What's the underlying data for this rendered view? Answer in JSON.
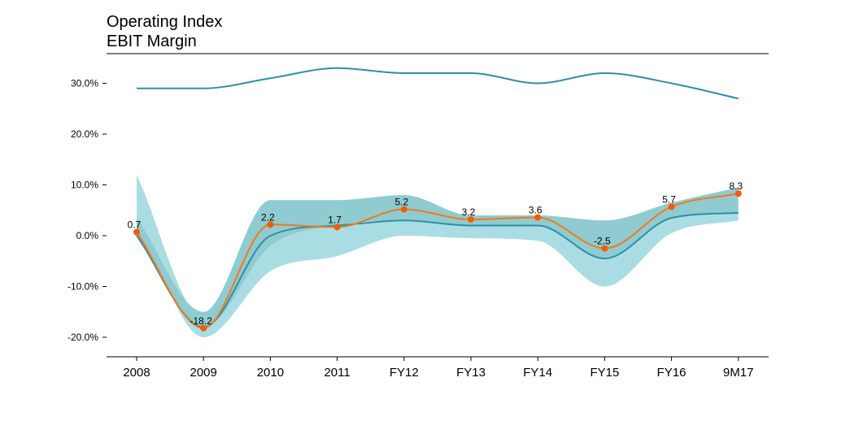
{
  "chart_data": {
    "type": "line",
    "title": "Operating Index",
    "subtitle": "EBIT Margin",
    "categories": [
      "2008",
      "2009",
      "2010",
      "2011",
      "FY12",
      "FY13",
      "FY14",
      "FY15",
      "FY16",
      "9M17"
    ],
    "ylim": [
      -24,
      36
    ],
    "yticks": [
      -20,
      -10,
      0,
      10,
      20,
      30
    ],
    "ytick_labels": [
      "-20.0%",
      "-10.0%",
      "0.0%",
      "10.0%",
      "20.0%",
      "30.0%"
    ],
    "grid": false,
    "legend": "none",
    "series": [
      {
        "role": "ebit",
        "color": "#f07a1a",
        "marker_color": "#f25c05",
        "values": [
          0.7,
          -18.2,
          2.2,
          1.7,
          5.2,
          3.2,
          3.6,
          -2.5,
          5.7,
          8.3
        ],
        "data_labels": [
          "0.7",
          "-18.2",
          "2.2",
          "1.7",
          "5.2",
          "3.2",
          "3.6",
          "-2.5",
          "5.7",
          "8.3"
        ]
      },
      {
        "role": "upper",
        "color": "#2e8fa6",
        "values": [
          29,
          29,
          31,
          33,
          32,
          32,
          30,
          32,
          30,
          27
        ]
      },
      {
        "role": "median",
        "color": "#2e8fa6",
        "values": [
          0,
          -18,
          0,
          2,
          3,
          2,
          2,
          -4.5,
          3.5,
          4.5
        ]
      },
      {
        "role": "inner_band",
        "color": "#8fcbd0",
        "low": [
          0,
          -18,
          -2,
          2,
          3,
          2,
          2,
          -4.5,
          3.5,
          4.5
        ],
        "high": [
          3.5,
          -15,
          7,
          7,
          8,
          4,
          4,
          3,
          6.5,
          9.5
        ]
      },
      {
        "role": "outer_band",
        "color": "#aadde3",
        "low": [
          3.5,
          -20,
          -7,
          -4,
          0,
          -0.5,
          -1,
          -10,
          0.5,
          3
        ],
        "high": [
          12,
          -16,
          2,
          2,
          3,
          2,
          2,
          -4.5,
          3.5,
          4.5
        ]
      }
    ]
  }
}
